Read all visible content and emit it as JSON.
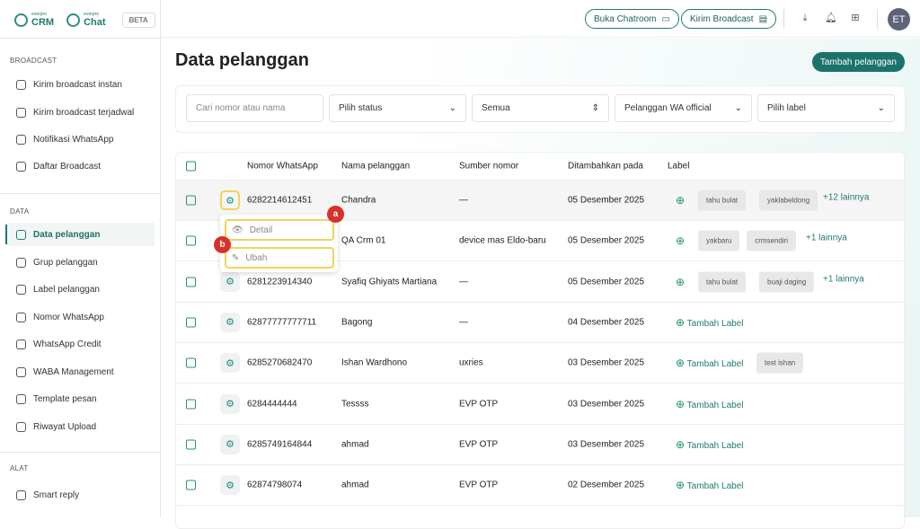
{
  "brand": {
    "crm_top": "everpro",
    "crm": "CRM",
    "chat_top": "everpro",
    "chat": "Chat",
    "beta": "BETA"
  },
  "sidebar": {
    "sections": [
      {
        "title": "BROADCAST",
        "items": [
          {
            "label": "Kirim broadcast instan",
            "icon": "timer-icon"
          },
          {
            "label": "Kirim broadcast terjadwal",
            "icon": "calendar-icon"
          },
          {
            "label": "Notifikasi WhatsApp",
            "icon": "whatsapp-icon"
          },
          {
            "label": "Daftar Broadcast",
            "icon": "list-icon"
          }
        ]
      },
      {
        "title": "DATA",
        "items": [
          {
            "label": "Data pelanggan",
            "icon": "user-icon",
            "active": true
          },
          {
            "label": "Grup pelanggan",
            "icon": "group-icon"
          },
          {
            "label": "Label pelanggan",
            "icon": "label-icon"
          },
          {
            "label": "Nomor WhatsApp",
            "icon": "whatsapp-icon"
          },
          {
            "label": "WhatsApp Credit",
            "icon": "credit-icon"
          },
          {
            "label": "WABA Management",
            "icon": "whatsapp-icon"
          },
          {
            "label": "Template pesan",
            "icon": "template-icon"
          },
          {
            "label": "Riwayat Upload",
            "icon": "upload-icon"
          }
        ]
      },
      {
        "title": "ALAT",
        "items": [
          {
            "label": "Smart reply",
            "icon": "reply-icon"
          }
        ]
      }
    ]
  },
  "topbar": {
    "chatroom": "Buka Chatroom",
    "broadcast": "Kirim Broadcast",
    "avatar": "ET"
  },
  "page": {
    "title": "Data pelanggan",
    "add_button": "Tambah pelanggan"
  },
  "filters": {
    "search_placeholder": "Cari nomor atau nama",
    "status": "Pilih status",
    "all": "Semua",
    "official": "Pelanggan WA official",
    "label": "Pilih label"
  },
  "table": {
    "headers": [
      "Nomor WhatsApp",
      "Nama pelanggan",
      "Sumber nomor",
      "Ditambahkan pada",
      "Label"
    ],
    "add_label": "Tambah Label",
    "rows": [
      {
        "phone": "6282214612451",
        "name": "Chandra",
        "source": "—",
        "date": "05 Desember 2025",
        "tags": [
          "tahu bulat",
          "yaklabeldong"
        ],
        "more": "+12 lainnya"
      },
      {
        "phone": "",
        "name": "QA Crm 01",
        "source": "device mas Eldo-baru",
        "date": "05 Desember 2025",
        "tags": [
          "yakbaru",
          "crmsendiri"
        ],
        "more": "+1 lainnya"
      },
      {
        "phone": "6281223914340",
        "name": "Syafiq Ghiyats Martiana",
        "source": "—",
        "date": "05 Desember 2025",
        "tags": [
          "tahu bulat",
          "buaji daging"
        ],
        "more": "+1 lainnya"
      },
      {
        "phone": "62877777777711",
        "name": "Bagong",
        "source": "—",
        "date": "04 Desember 2025",
        "tags": [],
        "more": ""
      },
      {
        "phone": "6285270682470",
        "name": "Ishan Wardhono",
        "source": "uxries",
        "date": "03 Desember 2025",
        "tags": [
          "test ishan"
        ],
        "more": ""
      },
      {
        "phone": "6284444444",
        "name": "Tessss",
        "source": "EVP OTP",
        "date": "03 Desember 2025",
        "tags": [],
        "more": ""
      },
      {
        "phone": "6285749164844",
        "name": "ahmad",
        "source": "EVP OTP",
        "date": "03 Desember 2025",
        "tags": [],
        "more": ""
      },
      {
        "phone": "62874798074",
        "name": "ahmad",
        "source": "EVP OTP",
        "date": "02 Desember 2025",
        "tags": [],
        "more": ""
      }
    ]
  },
  "menu": {
    "detail": "Detail",
    "edit": "Ubah",
    "badge_a": "a",
    "badge_b": "b"
  }
}
